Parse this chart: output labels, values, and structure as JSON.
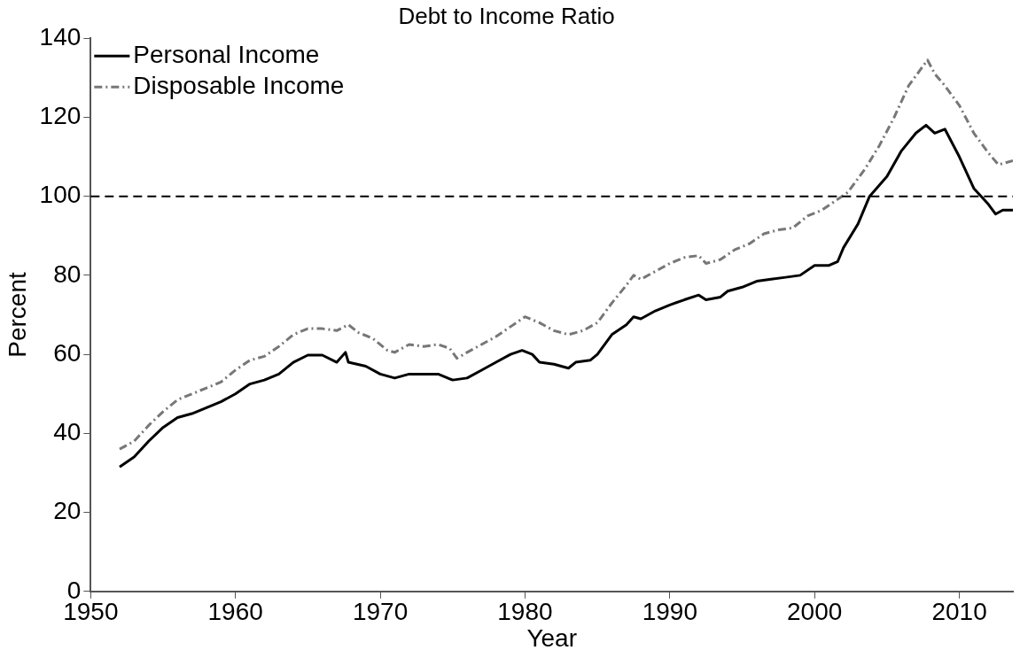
{
  "chart_data": {
    "type": "line",
    "title": "Debt to Income Ratio",
    "xlabel": "Year",
    "ylabel": "Percent",
    "xlim": [
      1950,
      2013.7
    ],
    "xticks": [
      1950,
      1960,
      1970,
      1980,
      1990,
      2000,
      2010
    ],
    "ylim": [
      0,
      140
    ],
    "yticks": [
      0,
      20,
      40,
      60,
      80,
      100,
      120,
      140
    ],
    "legend": "top left",
    "grid": false,
    "marker": "none",
    "ref_lines": [
      {
        "axis": "y",
        "value": 100,
        "color": "#000000",
        "line_style": "dashed"
      }
    ],
    "series": [
      {
        "name": "Personal Income",
        "color": "#000000",
        "line_style": "solid",
        "x": [
          1952,
          1953,
          1954,
          1955,
          1956,
          1957,
          1958,
          1959,
          1960,
          1961,
          1962,
          1963,
          1964,
          1965,
          1966,
          1967,
          1967.6,
          1967.8,
          1969,
          1970,
          1971,
          1972,
          1973,
          1974,
          1975,
          1976,
          1977,
          1978,
          1979,
          1979.8,
          1980.5,
          1981,
          1982,
          1983,
          1983.5,
          1984.5,
          1985,
          1986,
          1987,
          1987.5,
          1988,
          1989,
          1990,
          1991,
          1992,
          1992.5,
          1993.5,
          1994,
          1995,
          1996,
          1997,
          1998,
          1999,
          2000,
          2001,
          2001.6,
          2002,
          2003,
          2003.8,
          2005,
          2006,
          2007,
          2007.7,
          2008.3,
          2009,
          2010,
          2011,
          2012,
          2012.5,
          2013,
          2013.7
        ],
        "values": [
          31.5,
          34,
          38,
          41.5,
          44,
          45,
          46.5,
          48,
          50,
          52.5,
          53.5,
          55,
          58,
          59.8,
          59.8,
          58,
          60.5,
          58,
          57,
          55,
          54,
          55,
          55,
          55,
          53.5,
          54,
          56,
          58,
          60,
          61,
          60,
          58,
          57.5,
          56.5,
          58,
          58.5,
          60,
          65,
          67.5,
          69.5,
          69,
          71,
          72.5,
          73.8,
          75,
          73.8,
          74.5,
          76,
          77,
          78.5,
          79,
          79.5,
          80,
          82.5,
          82.5,
          83.5,
          87,
          93,
          100,
          105,
          111.5,
          116,
          118,
          116,
          117,
          110,
          102,
          98,
          95.5,
          96.5,
          96.5
        ]
      },
      {
        "name": "Disposable Income",
        "color": "#777777",
        "line_style": "dashed",
        "x": [
          1952,
          1953,
          1954,
          1955,
          1956,
          1957,
          1958,
          1959,
          1960,
          1961,
          1962,
          1963,
          1964,
          1965,
          1966,
          1967,
          1967.8,
          1968.5,
          1969.5,
          1970.5,
          1971,
          1972,
          1973,
          1974,
          1974.8,
          1975.3,
          1976,
          1977,
          1978,
          1979,
          1980,
          1981,
          1982,
          1983,
          1984,
          1985,
          1986,
          1987,
          1987.5,
          1988,
          1989,
          1990,
          1991,
          1992,
          1992.5,
          1993.5,
          1994.5,
          1995.5,
          1996.5,
          1997.5,
          1998.5,
          1999.5,
          2000.5,
          2001.5,
          2002.3,
          2003.5,
          2004.5,
          2005.5,
          2006.5,
          2007.3,
          2007.8,
          2008.3,
          2009,
          2010,
          2011,
          2012,
          2012.7,
          2013.7
        ],
        "values": [
          36,
          38,
          42,
          45.5,
          48.5,
          50,
          51.5,
          53,
          56,
          58.5,
          59.5,
          62,
          65,
          66.5,
          66.5,
          66,
          67.5,
          65.5,
          64,
          61,
          60.5,
          62.5,
          62,
          62.5,
          61.5,
          59,
          60.5,
          62.5,
          64.5,
          67,
          69.5,
          68,
          66,
          65,
          66,
          68,
          73,
          77.5,
          80,
          79,
          81,
          83,
          84.5,
          85,
          83,
          84,
          86.5,
          88,
          90.5,
          91.5,
          92,
          95,
          96.5,
          99,
          101,
          107,
          113,
          120,
          128,
          132,
          134.5,
          131,
          128,
          123,
          116,
          111,
          108,
          109
        ]
      }
    ]
  }
}
